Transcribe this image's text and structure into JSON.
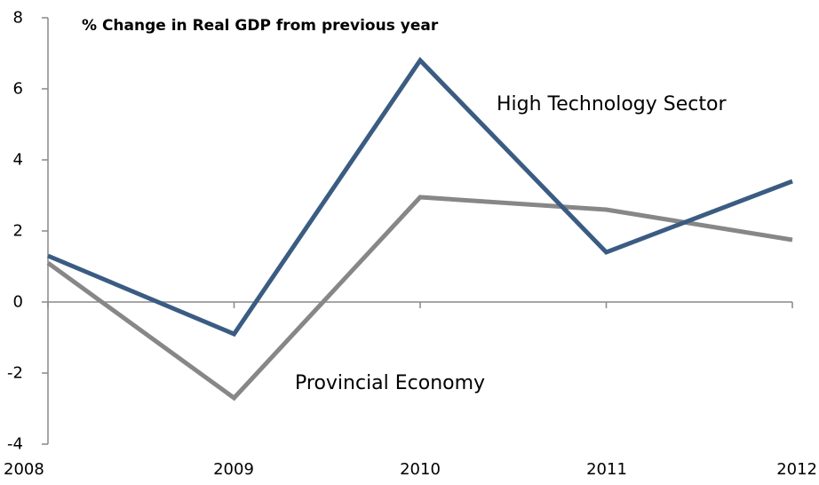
{
  "chart_data": {
    "type": "line",
    "title": "% Change in Real GDP from previous year",
    "xlabel": "",
    "ylabel": "",
    "categories": [
      "2008",
      "2009",
      "2010",
      "2011",
      "2012"
    ],
    "ylim": [
      -4,
      8
    ],
    "yticks": [
      "8",
      "6",
      "4",
      "2",
      "0",
      "-2",
      "-4"
    ],
    "grid": false,
    "series": [
      {
        "name": "High Technology Sector",
        "color": "#3b5c82",
        "values": [
          1.3,
          -0.9,
          6.8,
          1.4,
          3.4
        ]
      },
      {
        "name": "Provincial Economy",
        "color": "#878787",
        "values": [
          1.1,
          -2.7,
          2.95,
          2.6,
          1.75
        ]
      }
    ]
  }
}
